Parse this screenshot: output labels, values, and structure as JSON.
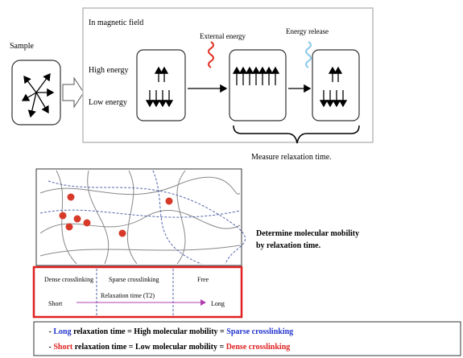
{
  "sample_label": "Sample",
  "panel": {
    "title": "In magnetic field",
    "high_energy": "High energy",
    "low_energy": "Low energy",
    "external_energy": "External energy",
    "energy_release": "Energy release",
    "measure": "Measure relaxation time."
  },
  "network": {
    "dense": "Dense crosslinking",
    "sparse": "Sparse crosslinking",
    "free": "Free",
    "short": "Short",
    "axis": "Relaxation time (T2)",
    "long": "Long"
  },
  "determine": {
    "line1": "Determine molecular mobility",
    "line2": "by relaxation time."
  },
  "legend": {
    "lines": [
      {
        "prefix": "- ",
        "keyword": "Long",
        "middle": " relaxation time = High molecular mobility = ",
        "result": "Sparse crosslinking"
      },
      {
        "prefix": "- ",
        "keyword": "Short",
        "middle": " relaxation time = Low molecular mobility = ",
        "result": "Dense crosslinking"
      }
    ]
  }
}
